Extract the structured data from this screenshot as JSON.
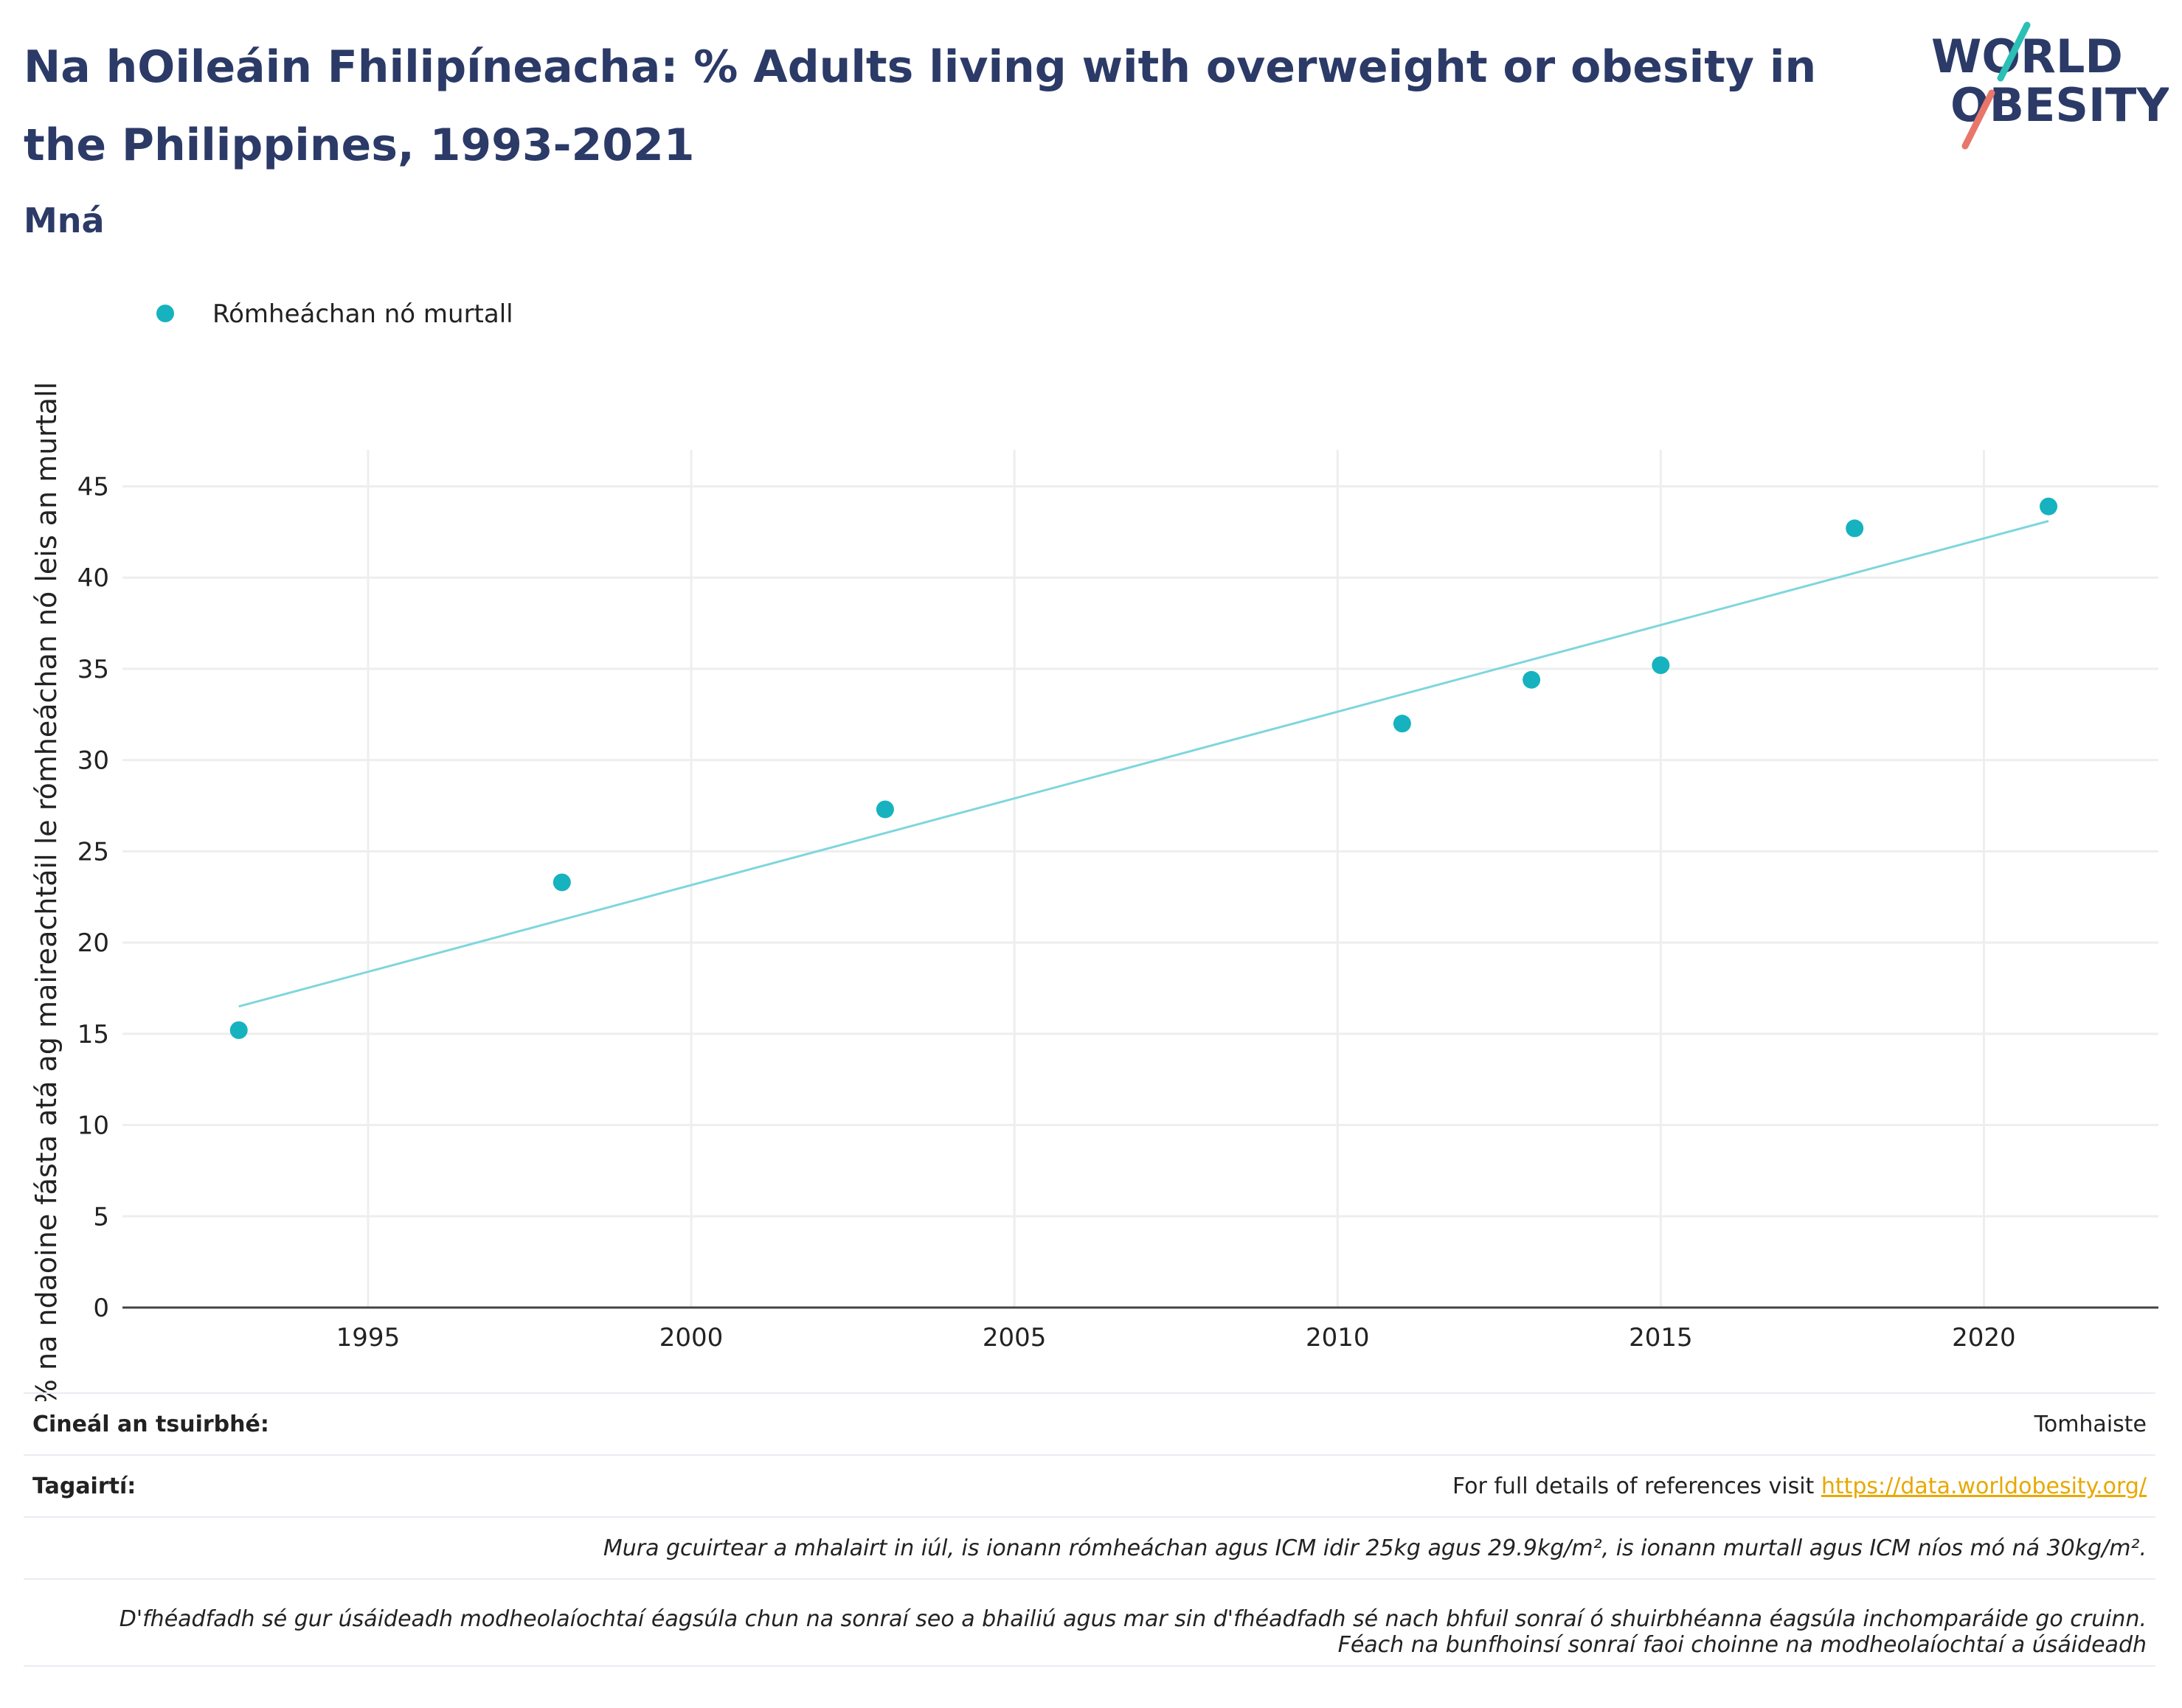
{
  "header": {
    "title": "Na hOileáin Fhilipíneacha: % Adults living with overweight or obesity in the Philippines, 1993-2021",
    "subtitle": "Mná"
  },
  "logo": {
    "line1": "WORLD",
    "line2": "OBESITY"
  },
  "colors": {
    "title": "#2b3a67",
    "point": "#16b2bf",
    "trend": "#7fd6dd",
    "grid": "#eeeeee",
    "logo_slash_top": "#2bbfb6",
    "logo_slash_bottom": "#e8766a"
  },
  "chart_data": {
    "type": "scatter",
    "series": [
      {
        "name": "Rómheáchan nó murtall",
        "x": [
          1993,
          1998,
          2003,
          2011,
          2013,
          2015,
          2018,
          2021
        ],
        "y": [
          15.2,
          23.3,
          27.3,
          32.0,
          34.4,
          35.2,
          42.7,
          43.9
        ]
      }
    ],
    "trendline": {
      "x": [
        1993,
        2021
      ],
      "y": [
        16.5,
        43.1
      ]
    },
    "xlim": [
      1991.2,
      2022.7
    ],
    "ylim": [
      0,
      47
    ],
    "xticks": [
      1995,
      2000,
      2005,
      2010,
      2015,
      2020
    ],
    "yticks": [
      0,
      5,
      10,
      15,
      20,
      25,
      30,
      35,
      40,
      45
    ],
    "ylabel": "% na ndaoine fásta atá ag maireachtáil le rómheáchan nó leis an murtall",
    "xlabel": "",
    "grid": true,
    "legend_position": "top-left"
  },
  "footer": {
    "survey_key": "Cineál an tsuirbhé:",
    "survey_value": "Tomhaiste",
    "refs_key": "Tagairtí:",
    "refs_text": "For full details of references visit ",
    "refs_link": "https://data.worldobesity.org/",
    "note1": "Mura gcuirtear a mhalairt in iúl, is ionann rómheáchan agus ICM idir 25kg agus 29.9kg/m², is ionann murtall agus ICM níos mó ná 30kg/m².",
    "note2a": "D'fhéadfadh sé gur úsáideadh modheolaíochtaí éagsúla chun na sonraí seo a bhailiú agus mar sin d'fhéadfadh sé nach bhfuil sonraí ó shuirbhéanna éagsúla inchomparáide go cruinn.",
    "note2b": "Féach na bunfhoinsí sonraí faoi choinne na modheolaíochtaí a úsáideadh"
  }
}
